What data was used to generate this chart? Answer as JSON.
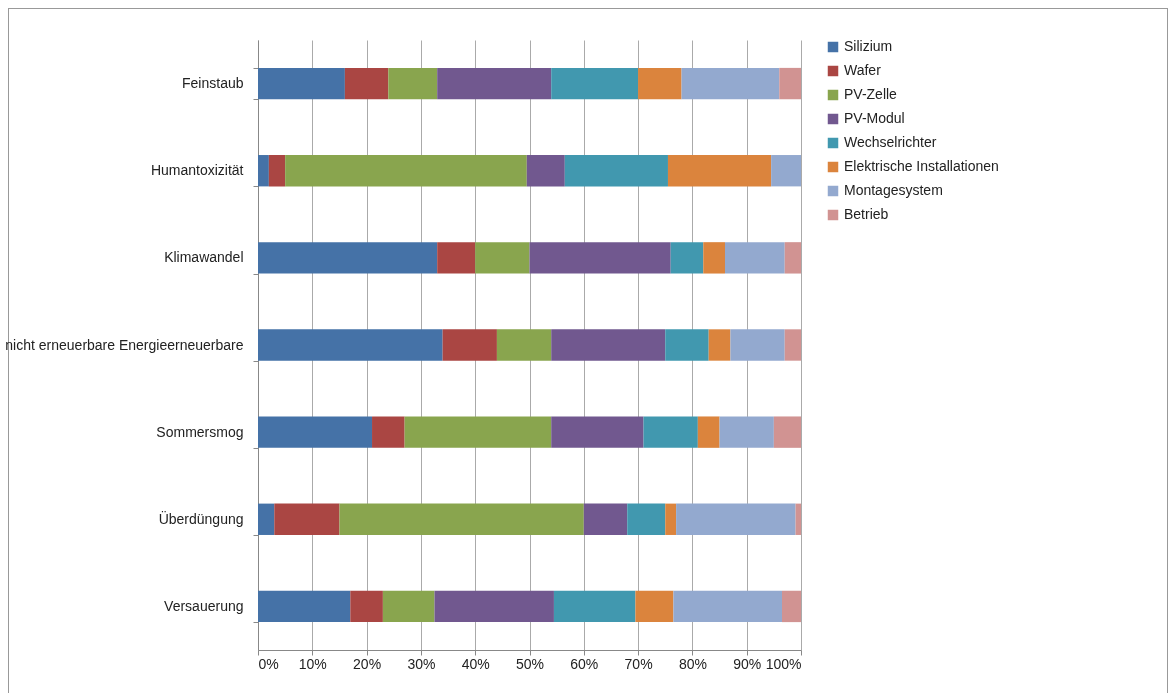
{
  "chart_data": {
    "type": "bar",
    "orientation": "horizontal",
    "stacked": true,
    "categories": [
      "Feinstaub",
      "Humantoxizität",
      "Klimawandel",
      "nicht erneuerbare  Energieerneuerbare",
      "Sommersmog",
      "Überdüngung",
      "Versauerung"
    ],
    "series": [
      {
        "name": "Silizium",
        "color": "#4572a7",
        "values": [
          16,
          2,
          33,
          34,
          21,
          3,
          17
        ]
      },
      {
        "name": "Wafer",
        "color": "#aa4643",
        "values": [
          8,
          3,
          7,
          10,
          6,
          12,
          6
        ]
      },
      {
        "name": "PV-Zelle",
        "color": "#89a54e",
        "values": [
          9,
          44.5,
          10,
          10,
          27,
          45,
          9.5
        ]
      },
      {
        "name": "PV-Modul",
        "color": "#71588f",
        "values": [
          21,
          7,
          26,
          21,
          17,
          8,
          22
        ]
      },
      {
        "name": "Wechselrichter",
        "color": "#4198af",
        "values": [
          16,
          19,
          6,
          8,
          10,
          7,
          15
        ]
      },
      {
        "name": "Elektrische Installationen",
        "color": "#db843d",
        "values": [
          8,
          19,
          4,
          4,
          4,
          2,
          7
        ]
      },
      {
        "name": "Montagesystem",
        "color": "#93a9cf",
        "values": [
          18,
          5.5,
          11,
          10,
          10,
          22,
          20
        ]
      },
      {
        "name": "Betrieb",
        "color": "#d19392",
        "values": [
          4,
          0,
          3,
          3,
          5,
          1,
          3.5
        ]
      }
    ],
    "xlim": [
      0,
      100
    ],
    "xticks": [
      {
        "value": 0,
        "label": "0%"
      },
      {
        "value": 10,
        "label": "10%"
      },
      {
        "value": 20,
        "label": "20%"
      },
      {
        "value": 30,
        "label": "30%"
      },
      {
        "value": 40,
        "label": "40%"
      },
      {
        "value": 50,
        "label": "50%"
      },
      {
        "value": 60,
        "label": "60%"
      },
      {
        "value": 70,
        "label": "70%"
      },
      {
        "value": 80,
        "label": "80%"
      },
      {
        "value": 90,
        "label": "90%"
      },
      {
        "value": 100,
        "label": "100%"
      }
    ],
    "grid": "x",
    "legend": "right"
  }
}
